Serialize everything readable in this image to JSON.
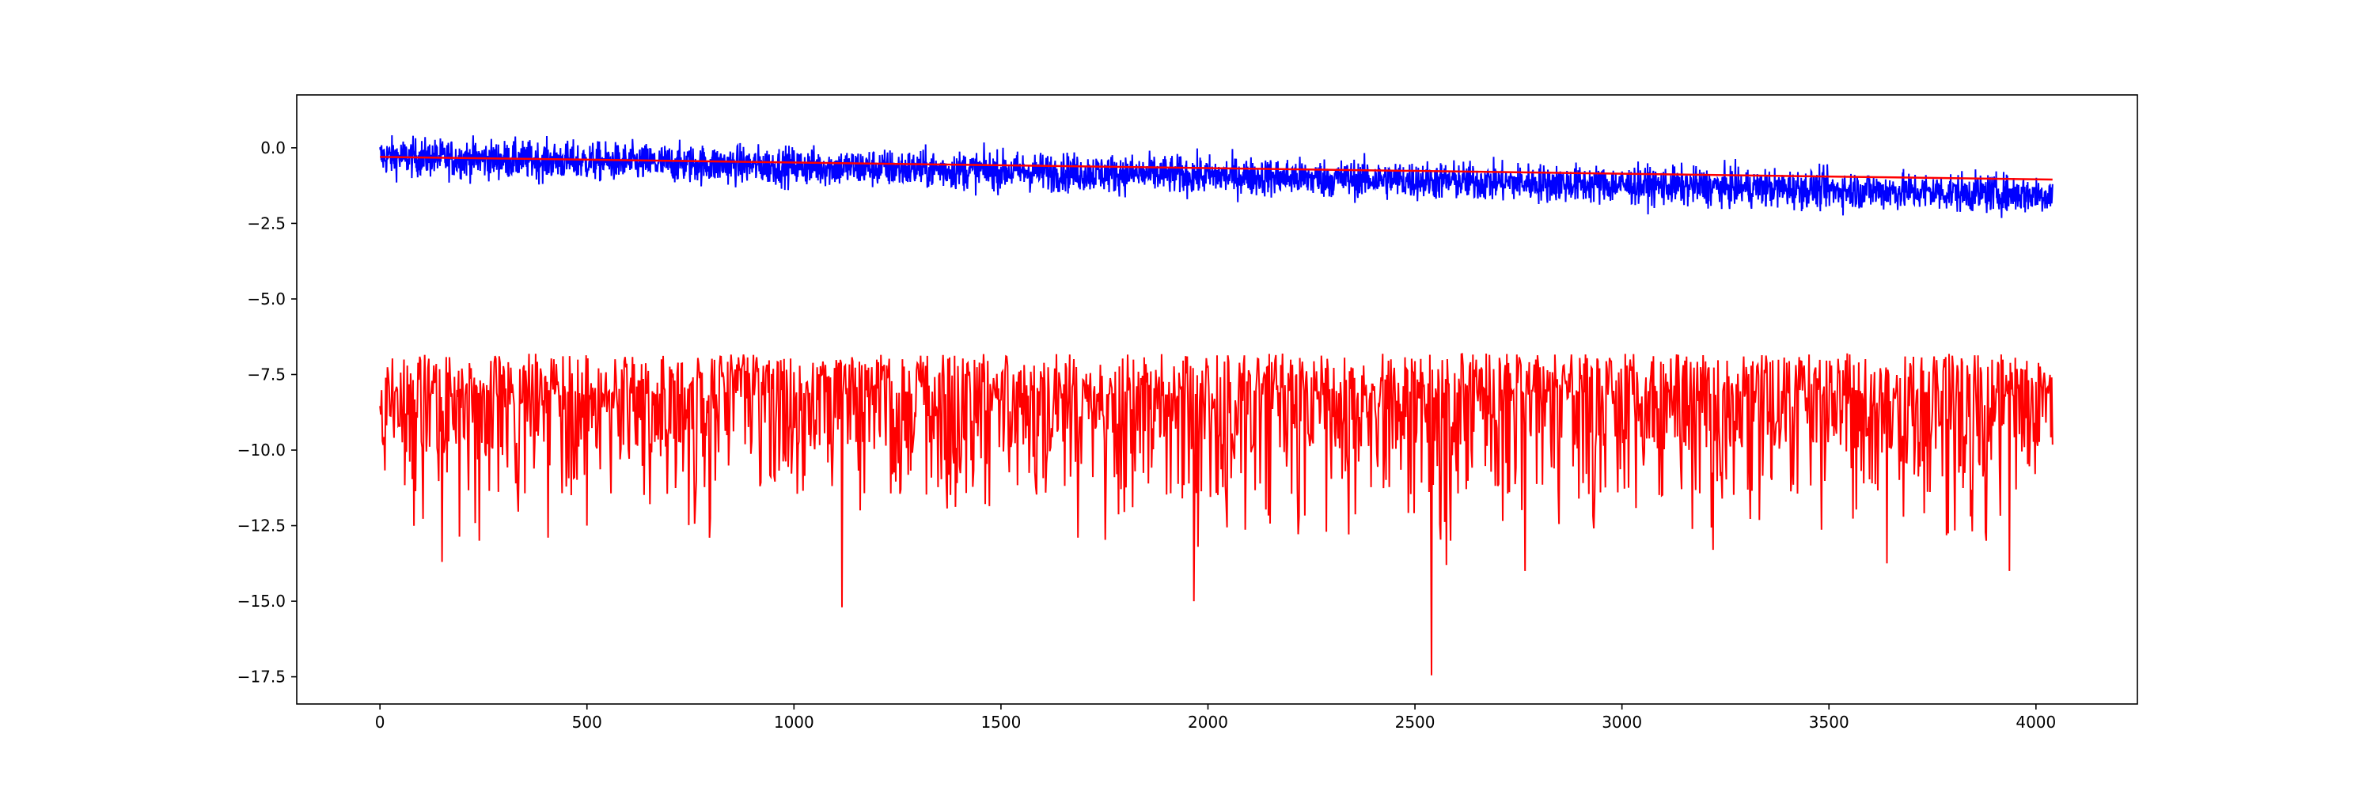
{
  "chart_data": {
    "type": "line",
    "title": "",
    "xlabel": "",
    "ylabel": "",
    "xlim": [
      -201,
      4245
    ],
    "ylim": [
      -18.4,
      1.75
    ],
    "grid": false,
    "legend": "none",
    "x_ticks": [
      0,
      500,
      1000,
      1500,
      2000,
      2500,
      3000,
      3500,
      4000
    ],
    "x_tick_labels": [
      "0",
      "500",
      "1000",
      "1500",
      "2000",
      "2500",
      "3000",
      "3500",
      "4000"
    ],
    "y_ticks": [
      0.0,
      -2.5,
      -5.0,
      -7.5,
      -10.0,
      -12.5,
      -15.0,
      -17.5
    ],
    "y_tick_labels": [
      "0.0",
      "−2.5",
      "−5.0",
      "−7.5",
      "−10.0",
      "−12.5",
      "−15.0",
      "−17.5"
    ],
    "series": [
      {
        "color": "#0000ff",
        "x_range": [
          0,
          4040
        ],
        "trend_start": -0.3,
        "trend_end": -1.55,
        "noise_amplitude": 0.45,
        "min": -2.65,
        "max": 0.8
      },
      {
        "color": "#ff0000",
        "role": "trend",
        "x": [
          0,
          4040
        ],
        "y": [
          -0.3,
          -1.05
        ]
      },
      {
        "color": "#ff0000",
        "x_range": [
          0,
          4040
        ],
        "baseline": -6.5,
        "typical_range": [
          -10.5,
          -5.6
        ],
        "min": -17.45,
        "max": -5.55,
        "spikes": [
          {
            "x": 150,
            "y": -13.7
          },
          {
            "x": 240,
            "y": -13.0
          },
          {
            "x": 405,
            "y": -12.9
          },
          {
            "x": 500,
            "y": -12.5
          },
          {
            "x": 795,
            "y": -12.9
          },
          {
            "x": 1115,
            "y": -15.2
          },
          {
            "x": 1685,
            "y": -12.9
          },
          {
            "x": 1965,
            "y": -15.0
          },
          {
            "x": 1975,
            "y": -13.2
          },
          {
            "x": 2285,
            "y": -12.7
          },
          {
            "x": 2540,
            "y": -17.45
          },
          {
            "x": 2575,
            "y": -13.8
          },
          {
            "x": 2765,
            "y": -14.0
          },
          {
            "x": 3220,
            "y": -13.3
          },
          {
            "x": 3640,
            "y": -13.75
          },
          {
            "x": 3880,
            "y": -13.0
          },
          {
            "x": 3935,
            "y": -14.0
          }
        ]
      }
    ]
  }
}
